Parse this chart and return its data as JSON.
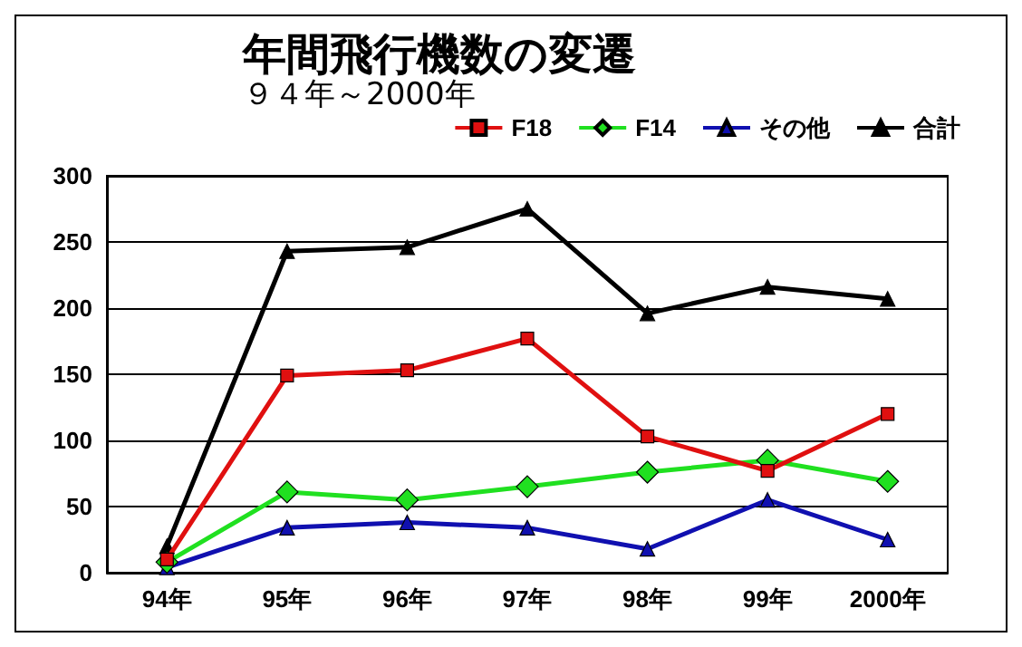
{
  "chart_data": {
    "type": "line",
    "title": "年間飛行機数の変遷",
    "subtitle": "９４年～2000年",
    "categories": [
      "94年",
      "95年",
      "96年",
      "97年",
      "98年",
      "99年",
      "2000年"
    ],
    "series": [
      {
        "name": "F18",
        "color": "#e01010",
        "marker": "square",
        "values": [
          10,
          149,
          153,
          177,
          103,
          77,
          120
        ]
      },
      {
        "name": "F14",
        "color": "#20e020",
        "marker": "diamond",
        "values": [
          8,
          61,
          55,
          65,
          76,
          85,
          69
        ]
      },
      {
        "name": "その他",
        "color": "#1010b0",
        "marker": "triangle",
        "values": [
          4,
          34,
          38,
          34,
          18,
          55,
          25
        ]
      },
      {
        "name": "合計",
        "color": "#000000",
        "marker": "triangle",
        "values": [
          20,
          243,
          246,
          275,
          196,
          216,
          207
        ]
      }
    ],
    "ylim": [
      0,
      300
    ],
    "yticks": [
      0,
      50,
      100,
      150,
      200,
      250,
      300
    ],
    "grid": "y",
    "legend": "top right"
  }
}
